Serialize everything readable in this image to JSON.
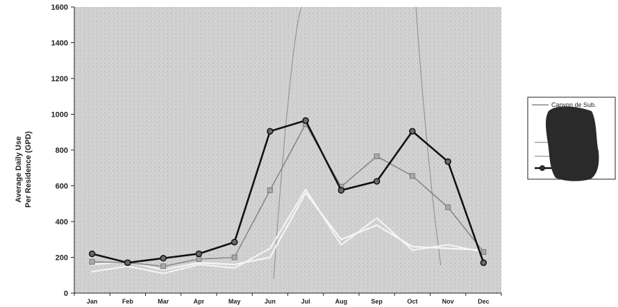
{
  "chart_data": {
    "type": "line",
    "categories": [
      "Jan",
      "Feb",
      "Mar",
      "Apr",
      "May",
      "Jun",
      "Jul",
      "Aug",
      "Sep",
      "Oct",
      "Nov",
      "Dec"
    ],
    "ylabel_line1": "Average Daily Use",
    "ylabel_line2": "Per Residence (GPD)",
    "ylim": [
      0,
      1600
    ],
    "yticks": [
      0,
      200,
      400,
      600,
      800,
      1000,
      1200,
      1400,
      1600
    ],
    "grid": false,
    "legend": {
      "placement": "right",
      "visible_entry": "Canyon de Sub."
    },
    "series": [
      {
        "color": "#111111",
        "marker": "circle",
        "values": [
          220,
          170,
          195,
          220,
          285,
          905,
          965,
          575,
          625,
          905,
          735,
          170
        ]
      },
      {
        "color": "#888888",
        "marker": "square",
        "values": [
          175,
          170,
          150,
          190,
          200,
          575,
          945,
          595,
          765,
          655,
          480,
          230
        ]
      },
      {
        "color": "#f3f3f3",
        "marker": "none",
        "values": [
          120,
          150,
          110,
          160,
          140,
          250,
          580,
          270,
          420,
          240,
          270,
          230
        ]
      },
      {
        "color": "#f6f6f6",
        "marker": "none",
        "values": [
          160,
          175,
          130,
          170,
          160,
          200,
          560,
          300,
          380,
          260,
          250,
          240
        ]
      }
    ]
  }
}
